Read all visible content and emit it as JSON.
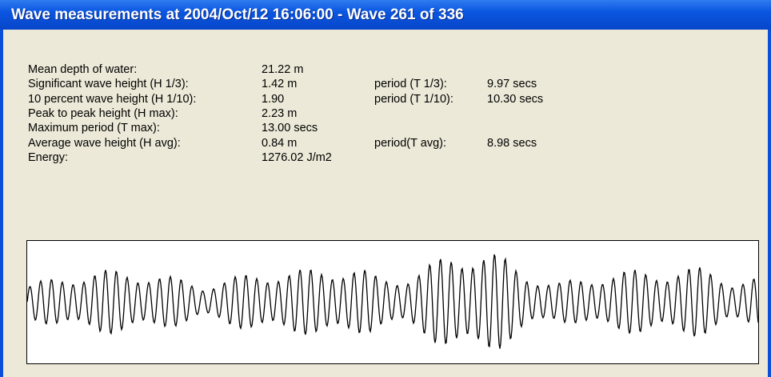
{
  "title": "Wave measurements at 2004/Oct/12 16:06:00 - Wave 261 of 336",
  "measurements": [
    {
      "label": "Mean depth of water:",
      "value": "21.22 m"
    },
    {
      "label": "Significant wave height (H 1/3):",
      "value": "1.42 m",
      "period_label": "period (T 1/3):",
      "period_value": "9.97 secs"
    },
    {
      "label": "10 percent wave height (H 1/10):",
      "value": "1.90",
      "period_label": "period (T 1/10):",
      "period_value": "10.30 secs"
    },
    {
      "label": "Peak to peak height (H max):",
      "value": "2.23 m"
    },
    {
      "label": "Maximum period (T max):",
      "value": "13.00 secs"
    },
    {
      "label": "Average wave height (H avg):",
      "value": "0.84 m",
      "period_label": "period(T avg):",
      "period_value": "8.98 secs"
    },
    {
      "label": "Energy:",
      "value": "1276.02 J/m2"
    }
  ]
}
